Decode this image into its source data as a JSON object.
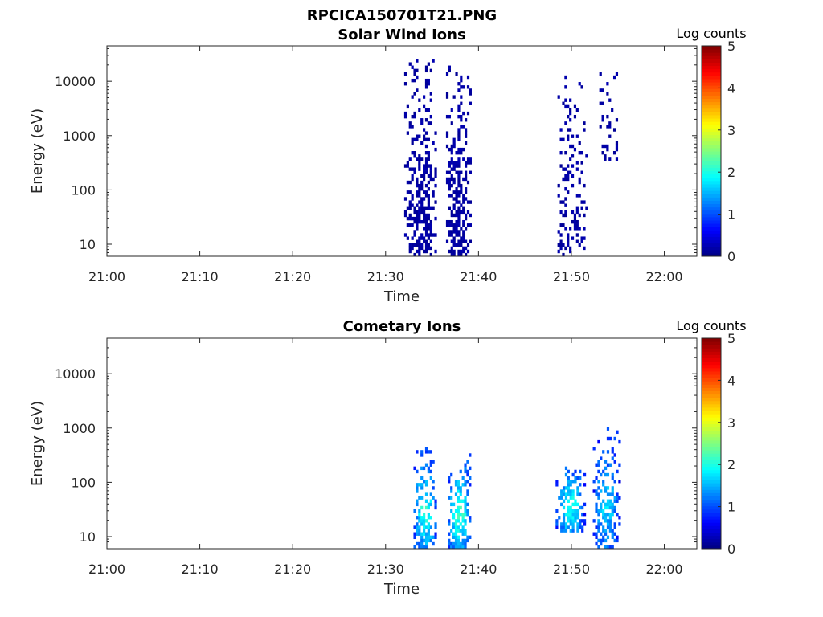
{
  "figure_title": "RPCICA150701T21.PNG",
  "chart_data": [
    {
      "type": "heatmap",
      "title": "Solar Wind Ions",
      "xlabel": "Time",
      "ylabel": "Energy (eV)",
      "x_ticks": [
        "21:00",
        "21:10",
        "21:20",
        "21:30",
        "21:40",
        "21:50",
        "22:00"
      ],
      "x_range_min": [
        0,
        63.5
      ],
      "y_scale": "log",
      "y_ticks": [
        10,
        100,
        1000,
        10000
      ],
      "y_range": [
        6,
        45000
      ],
      "colorbar": {
        "label": "Log counts",
        "range": [
          0,
          5
        ],
        "ticks": [
          0,
          1,
          2,
          3,
          4,
          5
        ]
      },
      "clusters": [
        {
          "t": [
            32.0,
            35.5
          ],
          "e": [
            6,
            25000
          ],
          "level": 0.1,
          "density": 0.6
        },
        {
          "t": [
            36.5,
            39.2
          ],
          "e": [
            6,
            18000
          ],
          "level": 0.1,
          "density": 0.62
        },
        {
          "t": [
            48.5,
            51.6
          ],
          "e": [
            6,
            18000
          ],
          "level": 0.1,
          "density": 0.32
        },
        {
          "t": [
            53.0,
            55.2
          ],
          "e": [
            300,
            15000
          ],
          "level": 0.1,
          "density": 0.22
        }
      ]
    },
    {
      "type": "heatmap",
      "title": "Cometary Ions",
      "xlabel": "Time",
      "ylabel": "Energy (eV)",
      "x_ticks": [
        "21:00",
        "21:10",
        "21:20",
        "21:30",
        "21:40",
        "21:50",
        "22:00"
      ],
      "x_range_min": [
        0,
        63.5
      ],
      "y_scale": "log",
      "y_ticks": [
        10,
        100,
        1000,
        10000
      ],
      "y_range": [
        6,
        45000
      ],
      "colorbar": {
        "label": "Log counts",
        "range": [
          0,
          5
        ],
        "ticks": [
          0,
          1,
          2,
          3,
          4,
          5
        ]
      },
      "clusters": [
        {
          "t": [
            33.0,
            35.5
          ],
          "e": [
            6,
            450
          ],
          "level": 1.8,
          "density": 0.72
        },
        {
          "t": [
            36.7,
            39.2
          ],
          "e": [
            6,
            330
          ],
          "level": 1.9,
          "density": 0.75
        },
        {
          "t": [
            48.3,
            51.4
          ],
          "e": [
            12,
            230
          ],
          "level": 1.8,
          "density": 0.82
        },
        {
          "t": [
            52.3,
            55.2
          ],
          "e": [
            6,
            950
          ],
          "level": 1.5,
          "density": 0.65
        }
      ]
    }
  ]
}
